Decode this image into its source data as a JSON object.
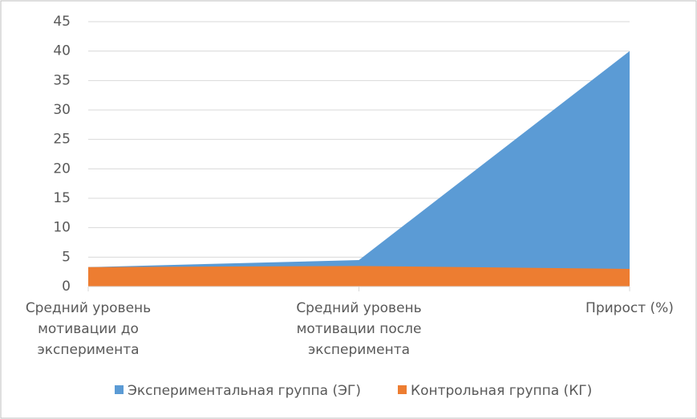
{
  "chart_data": {
    "type": "area",
    "categories": [
      "Средний уровень мотивации до эксперимента",
      "Средний уровень мотивации после эксперимента",
      "Прирост (%)"
    ],
    "series": [
      {
        "name": "Экспериментальная группа (ЭГ)",
        "color": "#5b9bd5",
        "values": [
          3.3,
          4.5,
          40
        ]
      },
      {
        "name": "Контрольная группа (КГ)",
        "color": "#ed7d31",
        "values": [
          3.3,
          3.5,
          3
        ]
      }
    ],
    "ylim": [
      0,
      45
    ],
    "yticks": [
      0,
      5,
      10,
      15,
      20,
      25,
      30,
      35,
      40,
      45
    ],
    "grid": true,
    "legend": "bottom"
  }
}
